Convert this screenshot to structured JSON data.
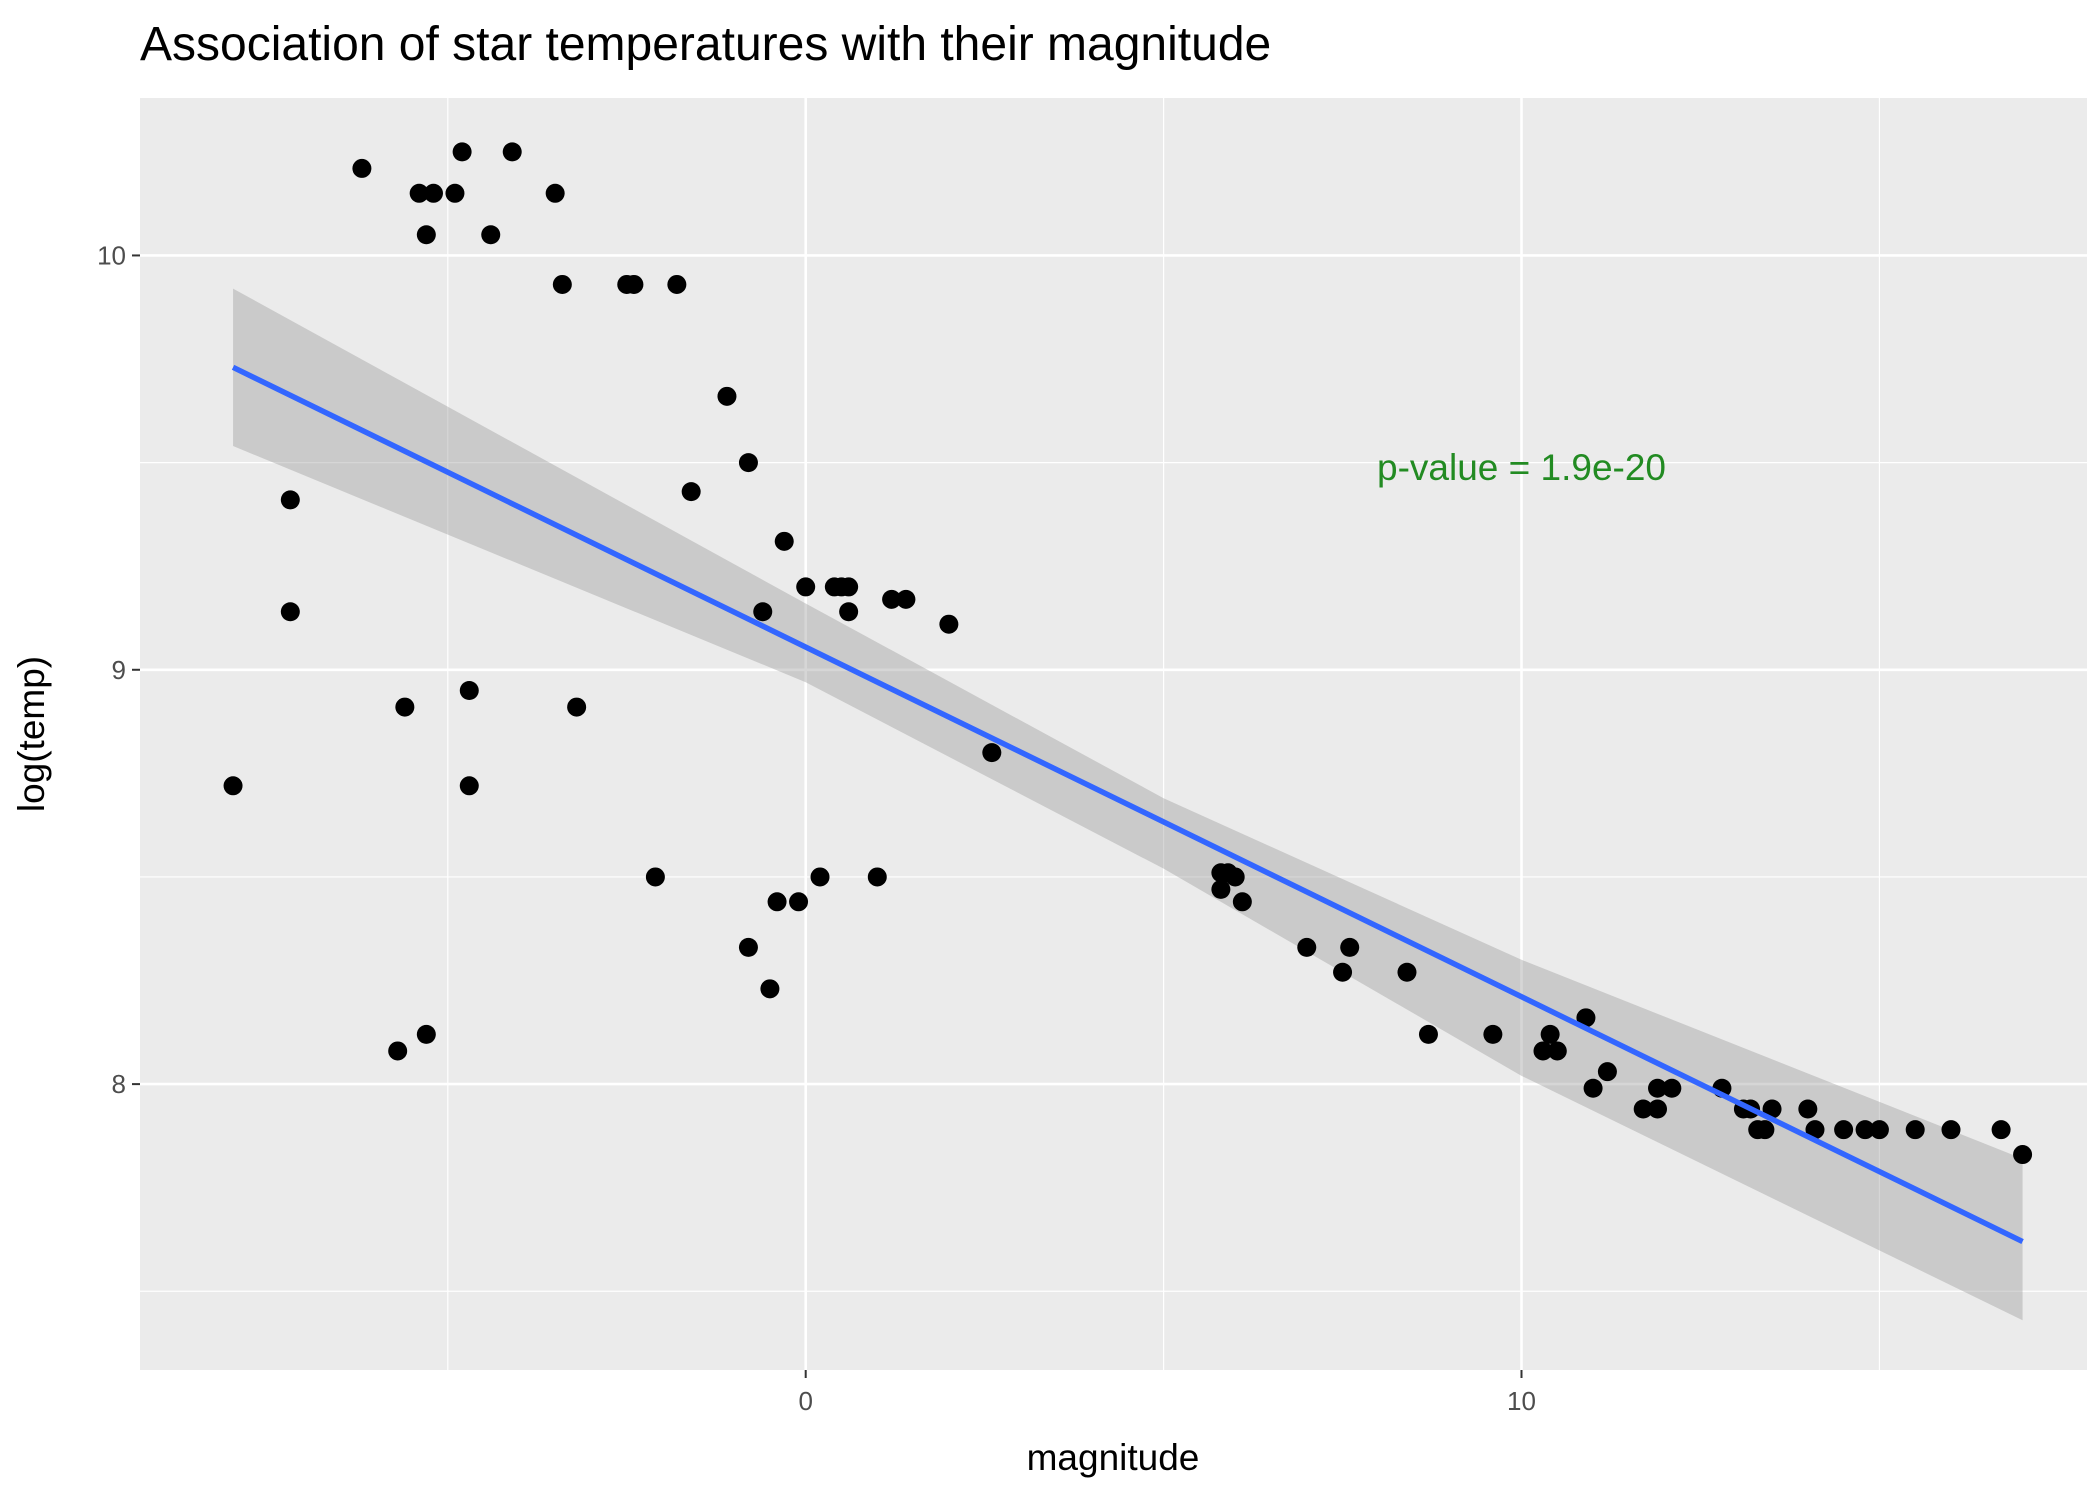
{
  "chart_data": {
    "type": "scatter",
    "title": "Association of star temperatures with their magnitude",
    "xlabel": "magnitude",
    "ylabel": "log(temp)",
    "xlim": [
      -9.3,
      17.9
    ],
    "ylim": [
      7.31,
      10.38
    ],
    "x_ticks": [
      0,
      10
    ],
    "x_tick_labels": [
      "0",
      "10"
    ],
    "x_minor_ticks": [
      -5,
      5,
      15
    ],
    "y_ticks": [
      8,
      9,
      10
    ],
    "y_tick_labels": [
      "8",
      "9",
      "10"
    ],
    "y_minor_ticks": [
      7.5,
      8.5,
      9.5
    ],
    "grid": true,
    "colors": {
      "panel": "#EBEBEB",
      "grid": "#FFFFFF",
      "points": "#000000",
      "fit_line": "#3366FF",
      "ribbon": "#999999",
      "annotation": "#228B22"
    },
    "points": [
      {
        "x": -8.0,
        "y": 8.72
      },
      {
        "x": -7.2,
        "y": 9.41
      },
      {
        "x": -7.2,
        "y": 9.14
      },
      {
        "x": -6.2,
        "y": 10.21
      },
      {
        "x": -5.7,
        "y": 8.08
      },
      {
        "x": -5.6,
        "y": 8.91
      },
      {
        "x": -5.4,
        "y": 10.15
      },
      {
        "x": -5.3,
        "y": 10.05
      },
      {
        "x": -5.3,
        "y": 8.12
      },
      {
        "x": -5.2,
        "y": 10.15
      },
      {
        "x": -4.9,
        "y": 10.15
      },
      {
        "x": -4.8,
        "y": 10.25
      },
      {
        "x": -4.7,
        "y": 8.95
      },
      {
        "x": -4.7,
        "y": 8.72
      },
      {
        "x": -4.4,
        "y": 10.05
      },
      {
        "x": -4.1,
        "y": 10.25
      },
      {
        "x": -3.5,
        "y": 10.15
      },
      {
        "x": -3.4,
        "y": 9.93
      },
      {
        "x": -3.2,
        "y": 8.91
      },
      {
        "x": -2.5,
        "y": 9.93
      },
      {
        "x": -2.4,
        "y": 9.93
      },
      {
        "x": -2.1,
        "y": 8.5
      },
      {
        "x": -1.8,
        "y": 9.93
      },
      {
        "x": -1.6,
        "y": 9.43
      },
      {
        "x": -1.1,
        "y": 9.66
      },
      {
        "x": -0.8,
        "y": 9.5
      },
      {
        "x": -0.8,
        "y": 8.33
      },
      {
        "x": -0.6,
        "y": 9.14
      },
      {
        "x": -0.5,
        "y": 8.23
      },
      {
        "x": -0.4,
        "y": 8.44
      },
      {
        "x": -0.3,
        "y": 9.31
      },
      {
        "x": -0.1,
        "y": 8.44
      },
      {
        "x": 0.0,
        "y": 9.2
      },
      {
        "x": 0.2,
        "y": 8.5
      },
      {
        "x": 0.4,
        "y": 9.2
      },
      {
        "x": 0.5,
        "y": 9.2
      },
      {
        "x": 0.6,
        "y": 9.2
      },
      {
        "x": 0.6,
        "y": 9.14
      },
      {
        "x": 1.0,
        "y": 8.5
      },
      {
        "x": 1.2,
        "y": 9.17
      },
      {
        "x": 1.4,
        "y": 9.17
      },
      {
        "x": 2.0,
        "y": 9.11
      },
      {
        "x": 2.6,
        "y": 8.8
      },
      {
        "x": 5.8,
        "y": 8.51
      },
      {
        "x": 5.8,
        "y": 8.47
      },
      {
        "x": 5.9,
        "y": 8.51
      },
      {
        "x": 6.0,
        "y": 8.5
      },
      {
        "x": 6.1,
        "y": 8.44
      },
      {
        "x": 7.0,
        "y": 8.33
      },
      {
        "x": 7.5,
        "y": 8.27
      },
      {
        "x": 7.6,
        "y": 8.33
      },
      {
        "x": 8.4,
        "y": 8.27
      },
      {
        "x": 8.7,
        "y": 8.12
      },
      {
        "x": 9.6,
        "y": 8.12
      },
      {
        "x": 10.3,
        "y": 8.08
      },
      {
        "x": 10.4,
        "y": 8.12
      },
      {
        "x": 10.5,
        "y": 8.08
      },
      {
        "x": 10.9,
        "y": 8.16
      },
      {
        "x": 11.0,
        "y": 7.99
      },
      {
        "x": 11.2,
        "y": 8.03
      },
      {
        "x": 11.7,
        "y": 7.94
      },
      {
        "x": 11.9,
        "y": 7.99
      },
      {
        "x": 11.9,
        "y": 7.94
      },
      {
        "x": 12.1,
        "y": 7.99
      },
      {
        "x": 12.8,
        "y": 7.99
      },
      {
        "x": 13.1,
        "y": 7.94
      },
      {
        "x": 13.2,
        "y": 7.94
      },
      {
        "x": 13.3,
        "y": 7.89
      },
      {
        "x": 13.4,
        "y": 7.89
      },
      {
        "x": 13.5,
        "y": 7.94
      },
      {
        "x": 14.0,
        "y": 7.94
      },
      {
        "x": 14.1,
        "y": 7.89
      },
      {
        "x": 14.5,
        "y": 7.89
      },
      {
        "x": 14.8,
        "y": 7.89
      },
      {
        "x": 15.0,
        "y": 7.89
      },
      {
        "x": 15.5,
        "y": 7.89
      },
      {
        "x": 16.0,
        "y": 7.89
      },
      {
        "x": 16.7,
        "y": 7.89
      },
      {
        "x": 17.0,
        "y": 7.83
      }
    ],
    "fit_line": {
      "x": [
        -8.0,
        17.0
      ],
      "y": [
        9.73,
        7.62
      ]
    },
    "confidence_band": {
      "x": [
        -8.0,
        0.0,
        5.0,
        10.0,
        17.0
      ],
      "lower": [
        9.54,
        8.97,
        8.52,
        8.02,
        7.43
      ],
      "upper": [
        9.92,
        9.16,
        8.69,
        8.3,
        7.82
      ]
    },
    "annotation": {
      "text": "p-value = 1.9e-20",
      "x": 10.0,
      "y": 9.49
    }
  }
}
